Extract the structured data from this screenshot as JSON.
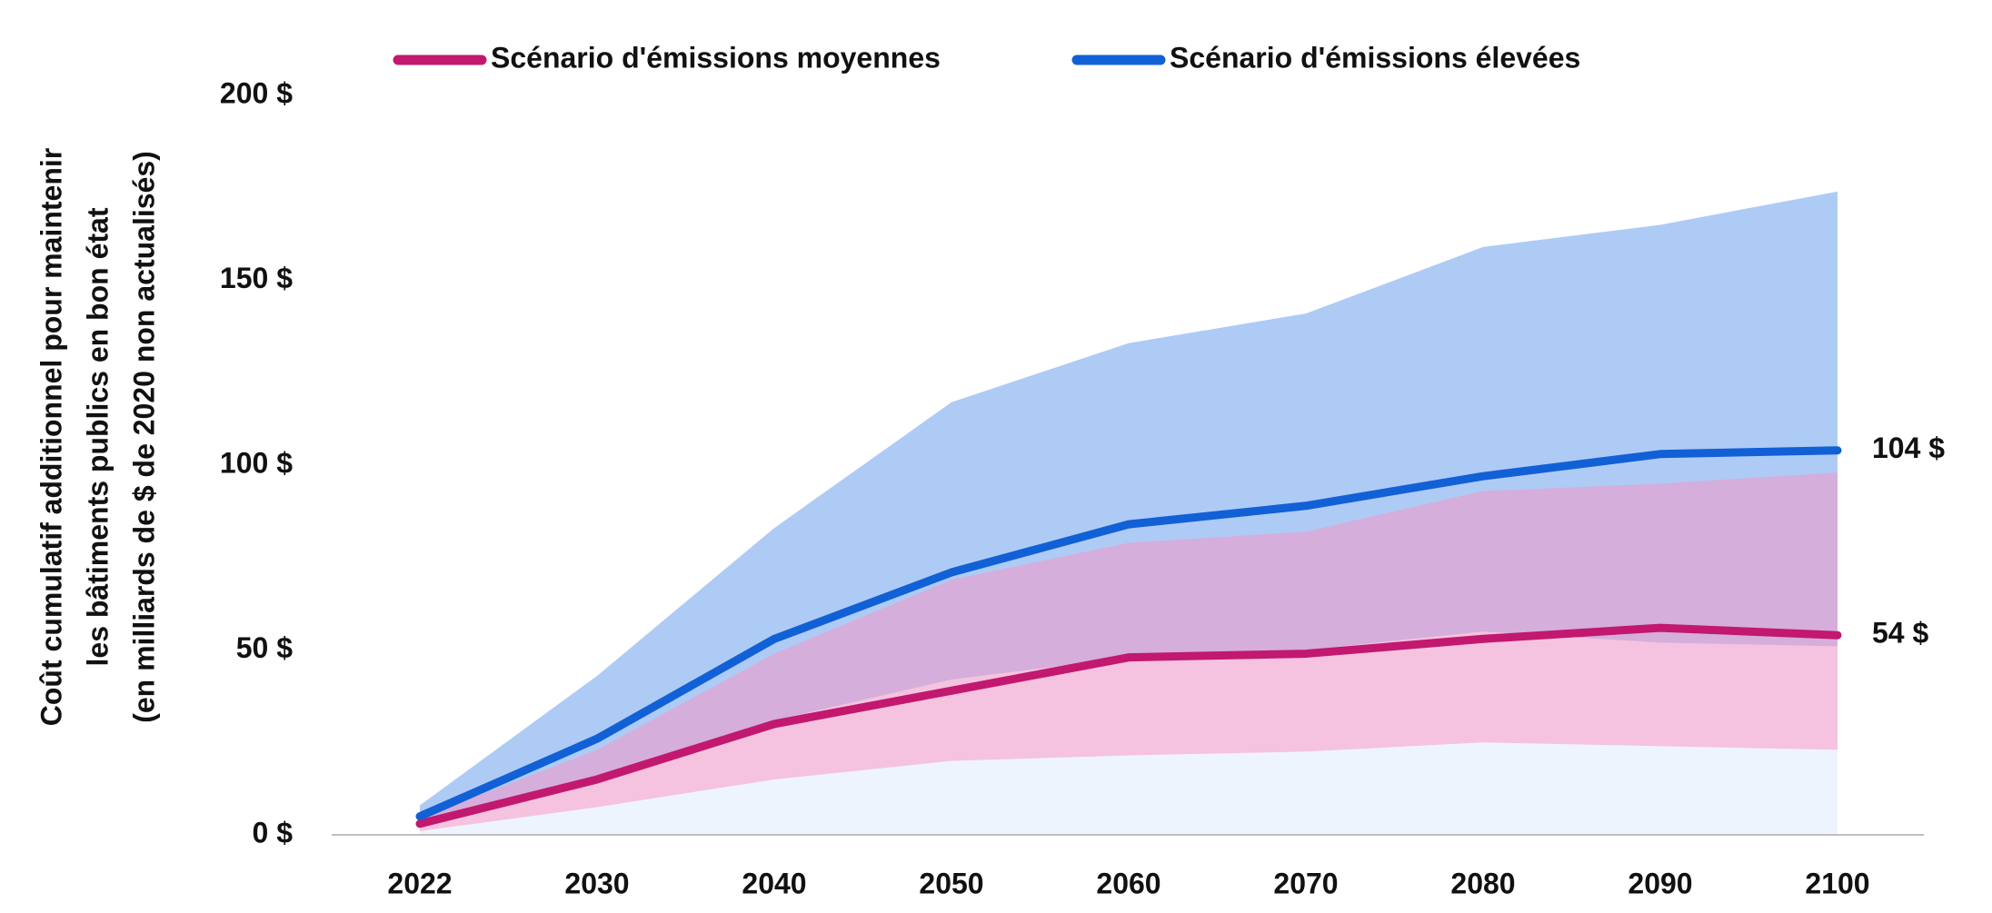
{
  "chart_data": {
    "type": "line",
    "y_label": [
      "Coût cumulatif additionnel pour maintenir",
      "les bâtiments publics en bon état",
      "(en milliards de $ de 2020 non actualisés)"
    ],
    "categories": [
      "2022",
      "2030",
      "2040",
      "2050",
      "2060",
      "2070",
      "2080",
      "2090",
      "2100"
    ],
    "series": [
      {
        "name": "Scénario d'émissions moyennes",
        "color": "#c2186f",
        "band_color": "#ee9bca",
        "values": [
          3,
          15,
          30,
          39,
          48,
          49,
          53,
          56,
          54
        ],
        "value_labels": [
          null,
          null,
          null,
          null,
          null,
          null,
          null,
          null,
          "54 $"
        ],
        "low": [
          1,
          7.5,
          15,
          20,
          21.5,
          22.5,
          25,
          24,
          23
        ],
        "high": [
          4.5,
          23,
          49,
          69,
          79,
          82,
          93,
          95,
          98
        ]
      },
      {
        "name": "Scénario d'émissions élevées",
        "color": "#1160d6",
        "band_color": "#aecbf5",
        "values": [
          5,
          26,
          53,
          71,
          84,
          89,
          97,
          103,
          104
        ],
        "value_labels": [
          null,
          null,
          null,
          null,
          null,
          null,
          null,
          null,
          "104 $"
        ],
        "low": [
          2,
          14,
          31,
          42,
          48,
          50,
          55,
          52,
          51
        ],
        "high": [
          8,
          43,
          83,
          117,
          133,
          141,
          159,
          165,
          174
        ]
      }
    ],
    "base_color": "#eef4fd",
    "ylim": [
      0,
      200
    ],
    "yticks": [
      {
        "value": 0,
        "label": "0 $"
      },
      {
        "value": 50,
        "label": "50 $"
      },
      {
        "value": 100,
        "label": "100 $"
      },
      {
        "value": 150,
        "label": "150 $"
      },
      {
        "value": 200,
        "label": "200 $"
      }
    ],
    "legend": "top"
  }
}
